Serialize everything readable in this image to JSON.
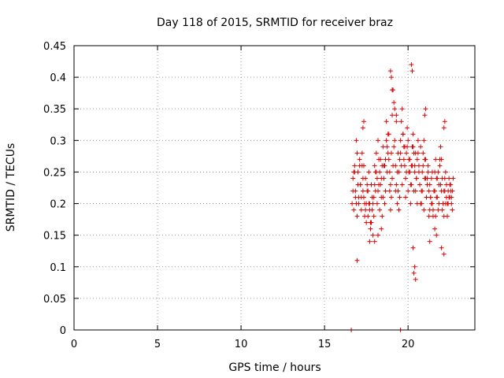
{
  "chart_data": {
    "type": "scatter",
    "title": "Day 118 of 2015, SRMTID for receiver braz",
    "xlabel": "GPS time / hours",
    "ylabel": "SRMTID / TECUs",
    "xlim": [
      0,
      24
    ],
    "ylim": [
      0,
      0.45
    ],
    "xticks": [
      0,
      5,
      10,
      15,
      20
    ],
    "xtick_labels": [
      "0",
      "5",
      "10",
      "15",
      "20"
    ],
    "yticks": [
      0,
      0.05,
      0.1,
      0.15,
      0.2,
      0.25,
      0.3,
      0.35,
      0.4,
      0.45
    ],
    "ytick_labels": [
      "0",
      "0.05",
      "0.1",
      "0.15",
      "0.2",
      "0.25",
      "0.3",
      "0.35",
      "0.4",
      "0.45"
    ],
    "grid": true,
    "marker": "+",
    "color": "#e00000",
    "series": [
      {
        "name": "SRMTID",
        "x": [
          16.6,
          19.55,
          16.65,
          16.7,
          16.75,
          16.8,
          16.85,
          16.9,
          16.95,
          17.0,
          17.05,
          17.1,
          17.15,
          17.2,
          17.25,
          17.3,
          17.35,
          17.4,
          17.45,
          17.5,
          17.55,
          17.6,
          17.65,
          17.7,
          17.75,
          17.8,
          17.85,
          17.9,
          17.95,
          18.0,
          18.05,
          18.1,
          18.15,
          18.2,
          18.25,
          18.3,
          18.35,
          18.4,
          18.45,
          18.5,
          18.55,
          18.6,
          18.65,
          18.7,
          18.75,
          18.8,
          18.85,
          18.9,
          18.95,
          19.0,
          19.05,
          19.1,
          19.15,
          19.2,
          19.25,
          19.3,
          19.35,
          19.4,
          19.45,
          19.5,
          19.55,
          19.6,
          19.65,
          19.7,
          19.75,
          19.8,
          19.85,
          19.9,
          19.95,
          20.0,
          20.05,
          20.1,
          20.15,
          20.2,
          20.25,
          20.3,
          20.35,
          20.4,
          20.45,
          20.5,
          20.55,
          20.6,
          20.65,
          20.7,
          20.75,
          20.8,
          20.85,
          20.9,
          20.95,
          21.0,
          21.05,
          21.1,
          21.15,
          21.2,
          21.25,
          21.3,
          21.35,
          21.4,
          21.45,
          21.5,
          21.55,
          21.6,
          21.65,
          21.7,
          21.75,
          21.8,
          21.85,
          21.9,
          21.95,
          22.0,
          22.05,
          22.1,
          22.15,
          22.2,
          22.25,
          22.3,
          22.35,
          22.4,
          22.45,
          22.5,
          22.55,
          22.6,
          22.65,
          22.7,
          16.7,
          16.8,
          16.9,
          17.0,
          17.1,
          17.2,
          17.3,
          17.4,
          17.5,
          17.6,
          17.7,
          17.8,
          17.9,
          18.0,
          18.1,
          18.2,
          18.3,
          18.4,
          18.5,
          18.6,
          18.7,
          18.8,
          18.9,
          19.0,
          19.1,
          19.2,
          19.3,
          19.4,
          19.5,
          19.6,
          19.7,
          19.8,
          19.9,
          20.0,
          20.1,
          20.2,
          20.3,
          20.4,
          20.5,
          20.6,
          20.7,
          20.8,
          20.9,
          21.0,
          21.1,
          21.2,
          21.3,
          21.4,
          21.5,
          21.6,
          21.7,
          21.8,
          21.9,
          22.0,
          22.1,
          22.2,
          22.3,
          22.4,
          22.5,
          22.6,
          16.75,
          16.85,
          16.95,
          17.05,
          17.15,
          17.25,
          17.35,
          17.45,
          17.55,
          17.65,
          17.75,
          17.85,
          17.95,
          18.05,
          18.15,
          18.25,
          18.35,
          18.45,
          18.55,
          18.65,
          18.75,
          18.85,
          18.95,
          19.05,
          19.15,
          19.25,
          19.35,
          19.45,
          19.55,
          19.65,
          19.75,
          19.85,
          19.95,
          20.05,
          20.15,
          20.25,
          20.35,
          20.45,
          20.55,
          20.65,
          20.75,
          20.85,
          20.95,
          21.05,
          21.15,
          21.25,
          21.35,
          21.45,
          21.55,
          21.65,
          21.75,
          21.85,
          21.95,
          22.05,
          22.15,
          22.25,
          22.35,
          22.45,
          22.55,
          22.65,
          18.95,
          19.0,
          19.05,
          20.2,
          20.25,
          20.4,
          20.45,
          17.3,
          17.35,
          19.3,
          21.0,
          21.05,
          22.15,
          22.2,
          16.95,
          20.35,
          20.3,
          22.15,
          21.3,
          21.6,
          17.7,
          18.0,
          18.2,
          18.4,
          21.7,
          22.0
        ],
        "y": [
          0.0,
          0.0,
          0.2,
          0.24,
          0.19,
          0.26,
          0.22,
          0.3,
          0.18,
          0.25,
          0.21,
          0.27,
          0.23,
          0.19,
          0.28,
          0.22,
          0.26,
          0.2,
          0.24,
          0.17,
          0.22,
          0.18,
          0.25,
          0.2,
          0.16,
          0.23,
          0.19,
          0.15,
          0.21,
          0.26,
          0.22,
          0.28,
          0.24,
          0.3,
          0.27,
          0.25,
          0.23,
          0.21,
          0.26,
          0.29,
          0.24,
          0.2,
          0.27,
          0.33,
          0.29,
          0.31,
          0.27,
          0.25,
          0.23,
          0.28,
          0.34,
          0.38,
          0.36,
          0.3,
          0.26,
          0.23,
          0.2,
          0.22,
          0.25,
          0.27,
          0.3,
          0.33,
          0.35,
          0.31,
          0.29,
          0.26,
          0.24,
          0.28,
          0.32,
          0.3,
          0.27,
          0.25,
          0.23,
          0.26,
          0.29,
          0.31,
          0.28,
          0.25,
          0.22,
          0.24,
          0.27,
          0.3,
          0.26,
          0.23,
          0.2,
          0.22,
          0.25,
          0.28,
          0.3,
          0.27,
          0.24,
          0.21,
          0.23,
          0.26,
          0.22,
          0.19,
          0.21,
          0.24,
          0.2,
          0.18,
          0.22,
          0.25,
          0.27,
          0.24,
          0.21,
          0.19,
          0.23,
          0.26,
          0.29,
          0.27,
          0.24,
          0.2,
          0.18,
          0.22,
          0.25,
          0.23,
          0.2,
          0.22,
          0.24,
          0.21,
          0.23,
          0.2,
          0.22,
          0.24,
          0.22,
          0.25,
          0.2,
          0.23,
          0.26,
          0.21,
          0.24,
          0.18,
          0.2,
          0.22,
          0.19,
          0.17,
          0.2,
          0.23,
          0.25,
          0.22,
          0.19,
          0.24,
          0.21,
          0.26,
          0.3,
          0.28,
          0.22,
          0.21,
          0.26,
          0.35,
          0.33,
          0.28,
          0.21,
          0.26,
          0.31,
          0.29,
          0.25,
          0.22,
          0.27,
          0.23,
          0.29,
          0.26,
          0.24,
          0.28,
          0.23,
          0.2,
          0.26,
          0.24,
          0.21,
          0.25,
          0.23,
          0.2,
          0.19,
          0.22,
          0.21,
          0.25,
          0.27,
          0.22,
          0.2,
          0.24,
          0.21,
          0.2,
          0.23,
          0.21,
          0.25,
          0.21,
          0.28,
          0.2,
          0.23,
          0.26,
          0.21,
          0.19,
          0.23,
          0.2,
          0.17,
          0.21,
          0.18,
          0.25,
          0.2,
          0.23,
          0.27,
          0.18,
          0.26,
          0.22,
          0.25,
          0.31,
          0.19,
          0.24,
          0.29,
          0.22,
          0.25,
          0.19,
          0.28,
          0.23,
          0.27,
          0.21,
          0.29,
          0.25,
          0.2,
          0.26,
          0.22,
          0.28,
          0.2,
          0.25,
          0.29,
          0.22,
          0.19,
          0.27,
          0.24,
          0.18,
          0.21,
          0.25,
          0.22,
          0.18,
          0.24,
          0.2,
          0.23,
          0.19,
          0.22,
          0.2,
          0.18,
          0.21,
          0.22,
          0.19,
          0.41,
          0.4,
          0.38,
          0.42,
          0.41,
          0.1,
          0.08,
          0.32,
          0.33,
          0.34,
          0.34,
          0.35,
          0.32,
          0.33,
          0.11,
          0.09,
          0.13,
          0.12,
          0.14,
          0.16,
          0.14,
          0.14,
          0.15,
          0.16,
          0.15,
          0.13
        ]
      }
    ]
  }
}
